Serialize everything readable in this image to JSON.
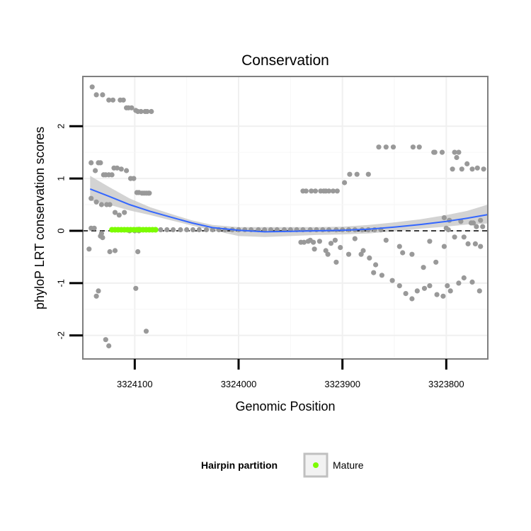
{
  "chart_data": {
    "type": "scatter",
    "title": "Conservation",
    "xlabel": "Genomic Position",
    "ylabel": "phyloP LRT conservation scores",
    "x_reversed": true,
    "xlim": [
      3324150,
      3323760
    ],
    "ylim": [
      -2.45,
      2.95
    ],
    "x_ticks": [
      3324100,
      3324000,
      3323900,
      3323800
    ],
    "x_tick_labels": [
      "3324100",
      "3324000",
      "3323900",
      "3323800"
    ],
    "y_ticks": [
      2,
      1,
      0,
      -1,
      -2
    ],
    "y_tick_labels": [
      "2",
      "1",
      "0",
      "-1",
      "-2"
    ],
    "reference_line": {
      "y": 0,
      "style": "dashed"
    },
    "grid": true,
    "legend": {
      "title": "Hairpin partition",
      "entries": [
        {
          "label": "Mature",
          "color": "#7cfc00"
        }
      ],
      "position": "bottom"
    },
    "colors": {
      "points": "#999999",
      "mature": "#7cfc00",
      "smooth": "#3366ff",
      "band": "#c8c8c8",
      "border": "#7f7f7f"
    },
    "smooth": {
      "x": [
        3324143,
        3324125,
        3324105,
        3324085,
        3324065,
        3324045,
        3324025,
        3324000,
        3323975,
        3323950,
        3323925,
        3323900,
        3323875,
        3323850,
        3323825,
        3323800,
        3323780,
        3323760
      ],
      "y": [
        0.8,
        0.66,
        0.5,
        0.37,
        0.26,
        0.15,
        0.06,
        0.01,
        -0.02,
        -0.01,
        0.0,
        0.01,
        0.03,
        0.07,
        0.12,
        0.18,
        0.24,
        0.31
      ],
      "lower": [
        0.58,
        0.5,
        0.39,
        0.3,
        0.2,
        0.1,
        0.01,
        -0.1,
        -0.12,
        -0.1,
        -0.08,
        -0.07,
        -0.05,
        -0.01,
        0.04,
        0.08,
        0.12,
        0.14
      ],
      "upper": [
        1.05,
        0.84,
        0.62,
        0.45,
        0.32,
        0.2,
        0.11,
        0.07,
        0.07,
        0.07,
        0.07,
        0.08,
        0.11,
        0.16,
        0.22,
        0.3,
        0.38,
        0.5
      ]
    },
    "mature": {
      "x": [
        3324122,
        3324119,
        3324116,
        3324113,
        3324110,
        3324107,
        3324104,
        3324101,
        3324098,
        3324095,
        3324092,
        3324089,
        3324086,
        3324083,
        3324080
      ],
      "y": [
        0.02,
        0.02,
        0.02,
        0.02,
        0.02,
        0.02,
        0.02,
        0.02,
        0.02,
        0.02,
        0.02,
        0.02,
        0.02,
        0.02,
        0.02
      ]
    },
    "points": {
      "x": [
        3324141,
        3324137,
        3324131,
        3324125,
        3324121,
        3324114,
        3324111,
        3324108,
        3324106,
        3324103,
        3324099,
        3324097,
        3324094,
        3324090,
        3324088,
        3324084,
        3324142,
        3324138,
        3324135,
        3324133,
        3324130,
        3324128,
        3324125,
        3324122,
        3324120,
        3324117,
        3324113,
        3324108,
        3324104,
        3324101,
        3324098,
        3324096,
        3324093,
        3324091,
        3324089,
        3324087,
        3324086,
        3324142,
        3324137,
        3324132,
        3324127,
        3324124,
        3324119,
        3324115,
        3324110,
        3324105,
        3324100,
        3324096,
        3324133,
        3324131,
        3324124,
        3324119,
        3324097,
        3324089,
        3324137,
        3324135,
        3324128,
        3324125,
        3324099,
        3324144,
        3324132,
        3324139,
        3324142,
        3324096,
        3324081,
        3324075,
        3324069,
        3324063,
        3324056,
        3324050,
        3324044,
        3324038,
        3324031,
        3324025,
        3324019,
        3324013,
        3324006,
        3324000,
        3323994,
        3323988,
        3323981,
        3323975,
        3323969,
        3323963,
        3323956,
        3323950,
        3323944,
        3323938,
        3323931,
        3323925,
        3323919,
        3323913,
        3323906,
        3323900,
        3323894,
        3323888,
        3323881,
        3323875,
        3323869,
        3323863,
        3323938,
        3323935,
        3323930,
        3323926,
        3323921,
        3323918,
        3323916,
        3323913,
        3323909,
        3323905,
        3323898,
        3323893,
        3323886,
        3323875,
        3323865,
        3323858,
        3323851,
        3323832,
        3323826,
        3323812,
        3323804,
        3323792,
        3323788,
        3323811,
        3323790,
        3323780,
        3323770,
        3323794,
        3323785,
        3323775,
        3323764,
        3323937,
        3323931,
        3323928,
        3323922,
        3323916,
        3323911,
        3323907,
        3323902,
        3323882,
        3323874,
        3323870,
        3323862,
        3323852,
        3323845,
        3323839,
        3323833,
        3323828,
        3323821,
        3323816,
        3323809,
        3323803,
        3323799,
        3323796,
        3323788,
        3323783,
        3323775,
        3323768,
        3323940,
        3323933,
        3323927,
        3323914,
        3323906,
        3323894,
        3323888,
        3323880,
        3323868,
        3323858,
        3323845,
        3323842,
        3323833,
        3323822,
        3323816,
        3323810,
        3323802,
        3323779,
        3323772,
        3323767,
        3323800,
        3323798,
        3323792,
        3323783,
        3323774,
        3323767,
        3323802,
        3323797,
        3323786,
        3323776,
        3323771,
        3323765
      ],
      "y": [
        2.75,
        2.6,
        2.6,
        2.5,
        2.5,
        2.5,
        2.5,
        2.35,
        2.35,
        2.35,
        2.3,
        2.28,
        2.28,
        2.28,
        2.28,
        2.28,
        1.3,
        1.15,
        1.3,
        1.3,
        1.07,
        1.07,
        1.07,
        1.07,
        1.2,
        1.2,
        1.18,
        1.15,
        1.0,
        1.0,
        0.73,
        0.73,
        0.72,
        0.72,
        0.72,
        0.72,
        0.72,
        0.62,
        0.55,
        0.5,
        0.5,
        0.5,
        0.35,
        0.3,
        0.35,
        0.0,
        0.0,
        0.0,
        -0.1,
        -0.13,
        -0.4,
        -0.38,
        -0.4,
        -1.92,
        -1.25,
        -1.15,
        -2.08,
        -2.2,
        -1.1,
        -0.35,
        -0.05,
        0.05,
        0.05,
        0.03,
        0.02,
        0.02,
        0.02,
        0.02,
        0.02,
        0.02,
        0.02,
        0.02,
        0.02,
        0.02,
        0.02,
        0.02,
        0.02,
        0.02,
        0.02,
        0.02,
        0.02,
        0.02,
        0.02,
        0.02,
        0.02,
        0.02,
        0.02,
        0.02,
        0.02,
        0.02,
        0.02,
        0.02,
        0.02,
        0.02,
        0.02,
        0.02,
        0.02,
        0.02,
        0.02,
        0.02,
        0.76,
        0.76,
        0.76,
        0.76,
        0.76,
        0.76,
        0.76,
        0.76,
        0.76,
        0.76,
        0.92,
        1.08,
        1.08,
        1.08,
        1.6,
        1.6,
        1.6,
        1.6,
        1.6,
        1.5,
        1.5,
        1.5,
        1.5,
        1.5,
        1.4,
        1.28,
        1.2,
        1.18,
        1.18,
        1.18,
        1.18,
        -0.22,
        -0.18,
        -0.22,
        -0.2,
        -0.38,
        -0.24,
        -0.18,
        -0.32,
        -0.45,
        -0.52,
        -0.8,
        -0.85,
        -0.95,
        -1.05,
        -1.2,
        -1.3,
        -1.15,
        -1.1,
        -1.05,
        -1.22,
        -1.25,
        -1.05,
        -1.15,
        -1.0,
        -0.9,
        -0.98,
        -1.15,
        -0.22,
        -0.2,
        -0.35,
        -0.45,
        -0.6,
        -0.45,
        -0.15,
        -0.38,
        -0.65,
        -0.18,
        -0.3,
        -0.42,
        -0.45,
        -0.7,
        -0.2,
        -0.6,
        -0.3,
        -0.25,
        -0.25,
        -0.3,
        0.05,
        0.02,
        -0.12,
        -0.12,
        0.15,
        0.2,
        0.25,
        0.2,
        0.18,
        0.15,
        0.08,
        0.08
      ]
    }
  }
}
